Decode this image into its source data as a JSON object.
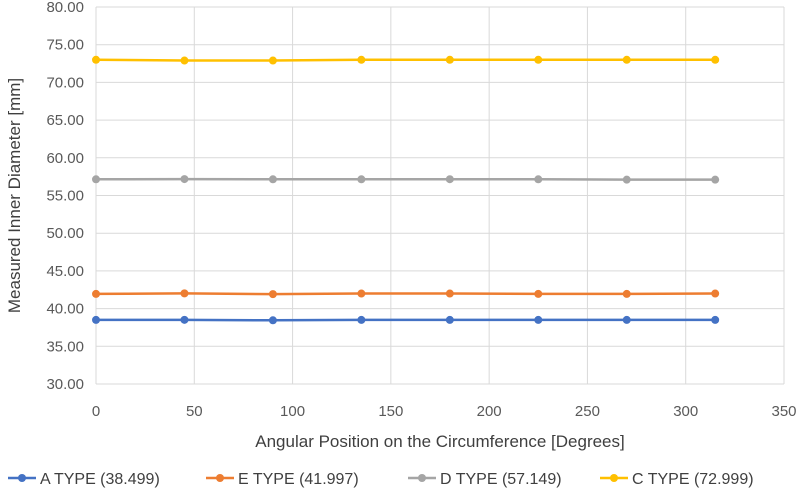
{
  "chart_data": {
    "type": "line",
    "title": "",
    "xlabel": "Angular Position on the Circumference [Degrees]",
    "ylabel": "Measured Inner Diameter [mm]",
    "xlim": [
      0,
      350
    ],
    "ylim": [
      30,
      80
    ],
    "x_ticks": [
      "0",
      "50",
      "100",
      "150",
      "200",
      "250",
      "300",
      "350"
    ],
    "y_ticks": [
      "30.00",
      "35.00",
      "40.00",
      "45.00",
      "50.00",
      "55.00",
      "60.00",
      "65.00",
      "70.00",
      "75.00",
      "80.00"
    ],
    "grid": true,
    "legend_position": "bottom",
    "x": [
      0,
      45,
      90,
      135,
      180,
      225,
      270,
      315
    ],
    "series": [
      {
        "name": "A TYPE (38.499)",
        "color": "#4472C4",
        "values": [
          38.5,
          38.51,
          38.45,
          38.5,
          38.5,
          38.5,
          38.5,
          38.5
        ]
      },
      {
        "name": "E TYPE (41.997)",
        "color": "#ED7D31",
        "values": [
          41.95,
          42.02,
          41.92,
          42.0,
          42.0,
          41.95,
          41.95,
          42.0
        ]
      },
      {
        "name": "D TYPE (57.149)",
        "color": "#A5A5A5",
        "values": [
          57.15,
          57.18,
          57.15,
          57.15,
          57.16,
          57.15,
          57.1,
          57.1
        ]
      },
      {
        "name": "C TYPE (72.999)",
        "color": "#FFC000",
        "values": [
          73.0,
          72.9,
          72.9,
          73.0,
          73.0,
          73.0,
          73.0,
          73.0
        ]
      }
    ]
  }
}
